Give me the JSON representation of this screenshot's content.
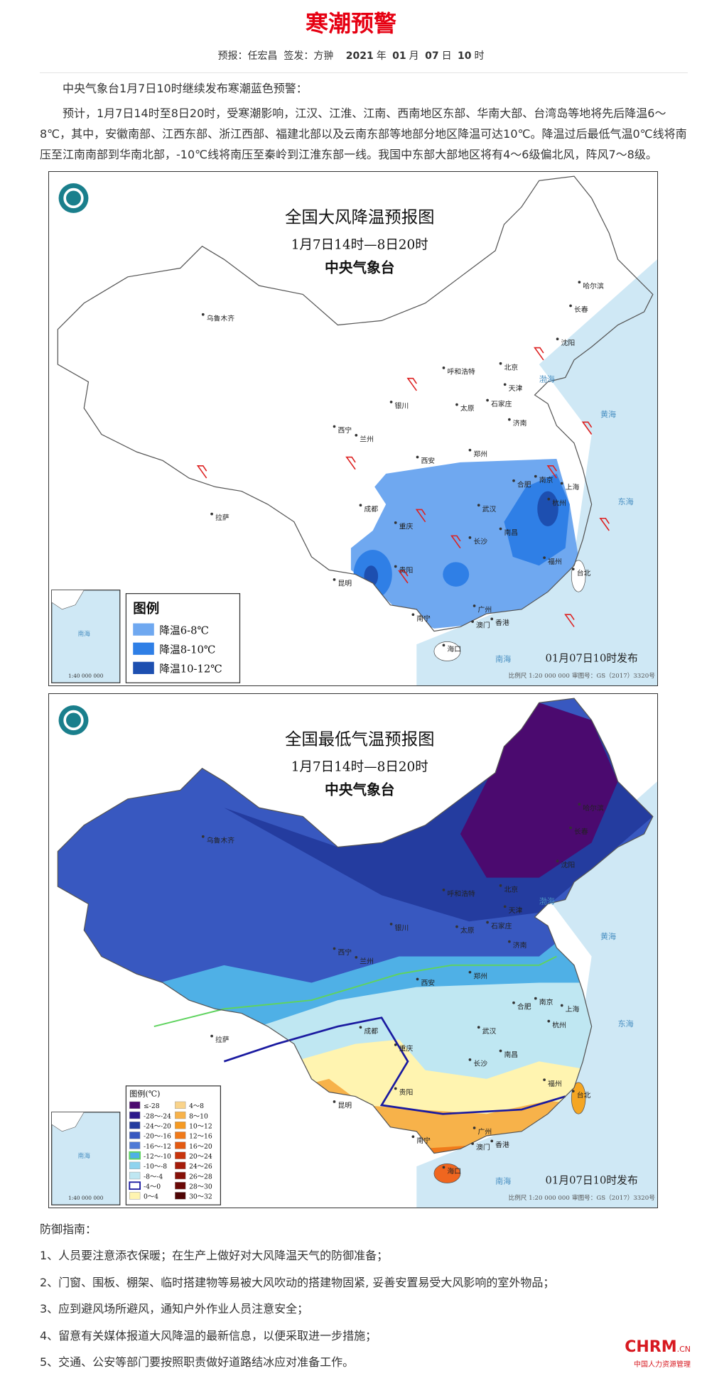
{
  "header": {
    "title": "寒潮预警",
    "meta": {
      "forecaster_label": "预报：",
      "forecaster": "任宏昌",
      "signer_label": "签发：",
      "signer": "方翀",
      "year": "2021",
      "year_unit": "年",
      "month": "01",
      "month_unit": "月",
      "day": "07",
      "day_unit": "日",
      "hour": "10",
      "hour_unit": "时"
    }
  },
  "intro": [
    "中央气象台1月7日10时继续发布寒潮蓝色预警：",
    "预计，1月7日14时至8日20时，受寒潮影响，江汉、江淮、江南、西南地区东部、华南大部、台湾岛等地将先后降温6～8℃，其中，安徽南部、江西东部、浙江西部、福建北部以及云南东部等地部分地区降温可达10℃。降温过后最低气温0℃线将南压至江南南部到华南北部，-10℃线将南压至秦岭到江淮东部一线。我国中东部大部地区将有4～6级偏北风，阵风7～8级。"
  ],
  "map1": {
    "title": "全国大风降温预报图",
    "period": "1月7日14时—8日20时",
    "agency": "中央气象台",
    "legend_title": "图例",
    "legend": [
      "降温6-8℃",
      "降温8-10℃",
      "降温10-12℃"
    ],
    "issued": "01月07日10时发布",
    "scale": "比例尺 1:20 000 000",
    "review": "审图号：GS（2017）3320号",
    "inset_scale": "1:40 000 000",
    "inset_sea": "南海",
    "cities": [
      "乌鲁木齐",
      "哈尔滨",
      "长春",
      "沈阳",
      "北京",
      "天津",
      "呼和浩特",
      "石家庄",
      "太原",
      "银川",
      "济南",
      "西宁",
      "兰州",
      "郑州",
      "西安",
      "南京",
      "合肥",
      "上海",
      "武汉",
      "杭州",
      "成都",
      "重庆",
      "南昌",
      "长沙",
      "拉萨",
      "贵阳",
      "福州",
      "台北",
      "昆明",
      "南宁",
      "广州",
      "香港",
      "澳门",
      "海口"
    ],
    "seas": [
      "渤海",
      "黄海",
      "东海",
      "南海"
    ]
  },
  "map2": {
    "title": "全国最低气温预报图",
    "period": "1月7日14时—8日20时",
    "agency": "中央气象台",
    "legend_title": "图例(℃)",
    "legend": [
      "≤-28",
      "-28～-24",
      "-24～-20",
      "-20～-16",
      "-16～-12",
      "-12～-10",
      "-10～-8",
      "-8～-4",
      "-4～0",
      "0～4",
      "4～8",
      "8～10",
      "10～12",
      "12～16",
      "16～20",
      "20～24",
      "24～26",
      "26～28",
      "28～30",
      "30～32"
    ],
    "issued": "01月07日10时发布",
    "scale": "比例尺 1:20 000 000",
    "review": "审图号：GS（2017）3320号",
    "inset_scale": "1:40 000 000",
    "inset_sea": "南海",
    "cities": [
      "乌鲁木齐",
      "哈尔滨",
      "长春",
      "沈阳",
      "北京",
      "天津",
      "呼和浩特",
      "石家庄",
      "太原",
      "银川",
      "济南",
      "西宁",
      "兰州",
      "郑州",
      "西安",
      "南京",
      "合肥",
      "上海",
      "武汉",
      "杭州",
      "成都",
      "重庆",
      "南昌",
      "长沙",
      "拉萨",
      "贵阳",
      "福州",
      "台北",
      "昆明",
      "南宁",
      "广州",
      "香港",
      "澳门",
      "海口"
    ],
    "seas": [
      "渤海",
      "黄海",
      "东海",
      "南海"
    ]
  },
  "guide": {
    "title": "防御指南：",
    "items": [
      "1、人员要注意添衣保暖；在生产上做好对大风降温天气的防御准备；",
      "2、门窗、围板、棚架、临时搭建物等易被大风吹动的搭建物固紧, 妥善安置易受大风影响的室外物品；",
      "3、应到避风场所避风，通知户外作业人员注意安全；",
      "4、留意有关媒体报道大风降温的最新信息，以便采取进一步措施；",
      "5、交通、公安等部门要按照职责做好道路结冰应对准备工作。"
    ]
  },
  "logo": {
    "brand": "CHRM",
    "domain": ".CN",
    "tagline": "中国人力资源管理"
  }
}
